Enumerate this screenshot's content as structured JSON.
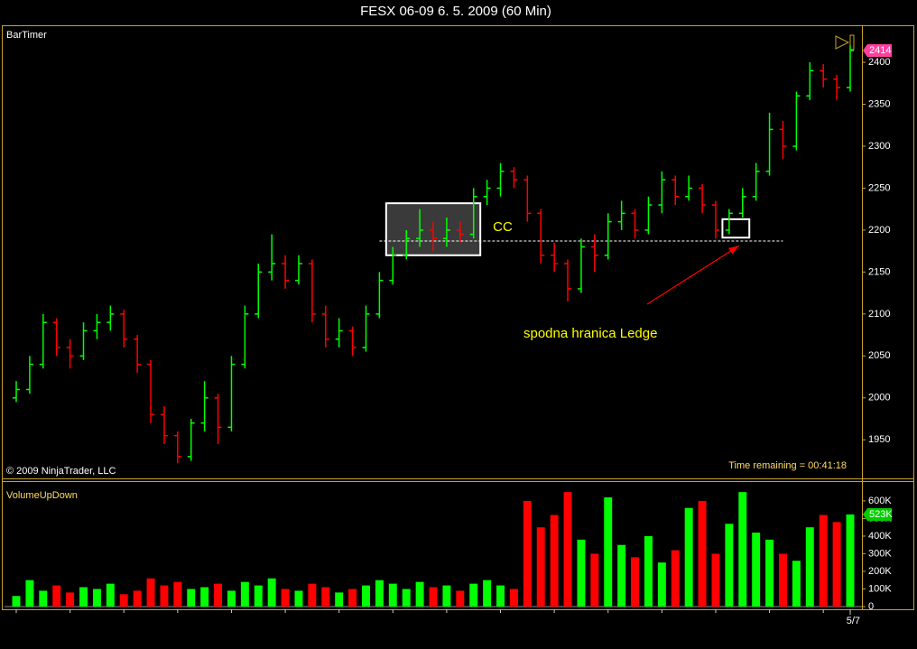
{
  "chart_data": [
    {
      "type": "ohlc",
      "title": "FESX 06-09  6. 5. 2009 (60 Min)",
      "labels": {
        "bar_timer": "BarTimer",
        "copyright": "© 2009 NinjaTrader, LLC",
        "time_remaining": "Time remaining = 00:41:18",
        "cc": "CC",
        "ledge": "spodna hranica Ledge"
      },
      "up_color": "#00ff00",
      "down_color": "#ff0000",
      "annotation_color": "#ffff00",
      "last_color": "#ff3f9f",
      "open": [
        2000,
        2010,
        2040,
        2090,
        2060,
        2050,
        2080,
        2090,
        2100,
        2070,
        2040,
        1980,
        1955,
        1930,
        1970,
        2000,
        1965,
        2040,
        2100,
        2150,
        2160,
        2140,
        2160,
        2100,
        2070,
        2080,
        2060,
        2100,
        2140,
        2170,
        2190,
        2200,
        2190,
        2200,
        2195,
        2240,
        2250,
        2270,
        2260,
        2220,
        2170,
        2160,
        2130,
        2180,
        2170,
        2210,
        2220,
        2200,
        2230,
        2260,
        2240,
        2250,
        2230,
        2200,
        2220,
        2240,
        2270,
        2320,
        2300,
        2360,
        2390,
        2380,
        2370
      ],
      "high": [
        2020,
        2050,
        2100,
        2095,
        2070,
        2090,
        2100,
        2110,
        2105,
        2075,
        2045,
        1990,
        1960,
        1975,
        2020,
        2005,
        2050,
        2110,
        2160,
        2195,
        2170,
        2170,
        2165,
        2110,
        2095,
        2085,
        2110,
        2150,
        2180,
        2200,
        2225,
        2210,
        2215,
        2210,
        2250,
        2260,
        2280,
        2275,
        2265,
        2225,
        2185,
        2165,
        2190,
        2195,
        2220,
        2235,
        2225,
        2240,
        2270,
        2265,
        2265,
        2255,
        2235,
        2225,
        2250,
        2280,
        2340,
        2330,
        2365,
        2400,
        2398,
        2385,
        2420
      ],
      "low": [
        1995,
        2005,
        2035,
        2050,
        2035,
        2045,
        2070,
        2080,
        2060,
        2030,
        1970,
        1945,
        1922,
        1925,
        1960,
        1945,
        1960,
        2035,
        2095,
        2140,
        2130,
        2135,
        2090,
        2060,
        2060,
        2050,
        2055,
        2095,
        2135,
        2165,
        2180,
        2175,
        2180,
        2185,
        2190,
        2230,
        2240,
        2250,
        2210,
        2160,
        2150,
        2115,
        2125,
        2150,
        2165,
        2200,
        2190,
        2195,
        2220,
        2230,
        2235,
        2220,
        2190,
        2195,
        2215,
        2235,
        2265,
        2285,
        2295,
        2355,
        2370,
        2355,
        2365
      ],
      "close": [
        2010,
        2040,
        2090,
        2060,
        2050,
        2080,
        2090,
        2100,
        2070,
        2040,
        1980,
        1955,
        1930,
        1970,
        2000,
        1965,
        2040,
        2100,
        2150,
        2160,
        2140,
        2160,
        2100,
        2070,
        2080,
        2060,
        2100,
        2140,
        2170,
        2190,
        2200,
        2190,
        2200,
        2195,
        2240,
        2250,
        2270,
        2260,
        2220,
        2170,
        2160,
        2130,
        2180,
        2170,
        2210,
        2220,
        2200,
        2230,
        2260,
        2240,
        2250,
        2230,
        2200,
        2220,
        2240,
        2270,
        2320,
        2300,
        2360,
        2390,
        2380,
        2370,
        2414
      ],
      "categories": [
        null,
        null,
        null,
        null,
        null,
        null,
        null,
        null,
        null,
        null,
        null,
        null,
        null,
        null,
        null,
        null,
        null,
        null,
        null,
        null,
        null,
        null,
        null,
        null,
        null,
        null,
        null,
        null,
        null,
        null,
        null,
        null,
        null,
        null,
        null,
        null,
        null,
        null,
        null,
        null,
        null,
        null,
        null,
        null,
        null,
        null,
        null,
        null,
        null,
        null,
        null,
        null,
        null,
        null,
        null,
        null,
        null,
        null,
        null,
        null,
        null,
        null,
        "5/7"
      ],
      "ylim": [
        1904,
        2442
      ],
      "yticks": [
        1950,
        2000,
        2050,
        2100,
        2150,
        2200,
        2250,
        2300,
        2350,
        2400
      ],
      "level_lines": [
        {
          "y": 2187,
          "x": [
            27,
            57
          ]
        }
      ],
      "boxes": [
        {
          "x": [
            28,
            34
          ],
          "y": [
            2170,
            2232
          ],
          "fill": "#3a3a3a"
        },
        {
          "x": [
            53,
            54
          ],
          "y": [
            2191,
            2213
          ],
          "fill": "#000000"
        }
      ]
    },
    {
      "type": "bar",
      "title": "VolumeUpDown",
      "up_color": "#00ff00",
      "down_color": "#ff0000",
      "last_color": "#00cc00",
      "values": [
        60000,
        150000,
        90000,
        120000,
        80000,
        110000,
        100000,
        130000,
        70000,
        90000,
        160000,
        120000,
        140000,
        100000,
        110000,
        130000,
        90000,
        140000,
        120000,
        160000,
        100000,
        90000,
        130000,
        110000,
        80000,
        100000,
        120000,
        150000,
        130000,
        100000,
        140000,
        110000,
        120000,
        90000,
        130000,
        150000,
        120000,
        100000,
        600000,
        450000,
        520000,
        650000,
        380000,
        300000,
        620000,
        350000,
        280000,
        400000,
        250000,
        320000,
        560000,
        600000,
        300000,
        470000,
        650000,
        420000,
        380000,
        300000,
        260000,
        450000,
        520000,
        480000,
        523000
      ],
      "value_labels": [
        null,
        null,
        null,
        null,
        null,
        null,
        null,
        null,
        null,
        null,
        null,
        null,
        null,
        null,
        null,
        null,
        null,
        null,
        null,
        null,
        null,
        null,
        null,
        null,
        null,
        null,
        null,
        null,
        null,
        null,
        null,
        null,
        null,
        null,
        null,
        null,
        null,
        null,
        null,
        null,
        null,
        null,
        null,
        null,
        null,
        null,
        null,
        null,
        null,
        null,
        null,
        null,
        null,
        null,
        null,
        null,
        null,
        null,
        null,
        null,
        null,
        null,
        "523K"
      ],
      "ylim": [
        0,
        697000
      ],
      "yticks": [
        0,
        {
          "value": 100000,
          "label": "100K"
        },
        {
          "value": 200000,
          "label": "200K"
        },
        {
          "value": 300000,
          "label": "300K"
        },
        {
          "value": 400000,
          "label": "400K"
        },
        {
          "value": 500000,
          "label": "500K"
        },
        {
          "value": 600000,
          "label": "600K"
        }
      ]
    }
  ]
}
